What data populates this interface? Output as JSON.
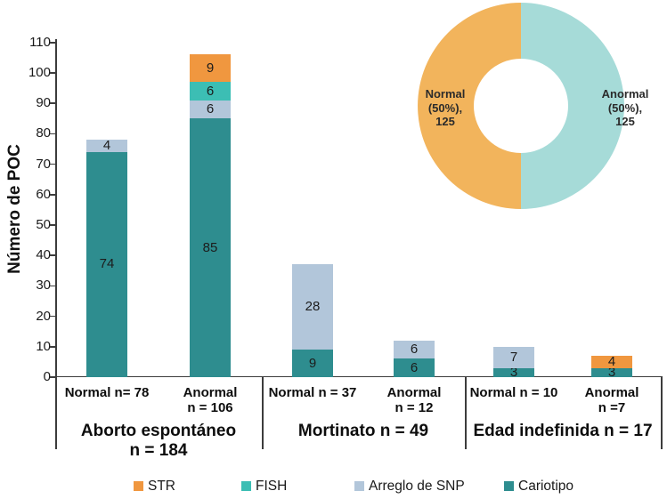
{
  "chart_data": [
    {
      "type": "bar",
      "stacked": true,
      "ylabel": "Número de POC",
      "ylim": [
        0,
        110
      ],
      "ytick_step": 10,
      "grid": false,
      "legend_position": "bottom",
      "legend": [
        "STR",
        "FISH",
        "Arreglo de SNP",
        "Cariotipo"
      ],
      "series_colors": {
        "STR": "#F0973F",
        "FISH": "#3CBEB4",
        "Arreglo de SNP": "#B2C6DA",
        "Cariotipo": "#2E8D8F"
      },
      "groups": [
        {
          "label": "Aborto espontáneo\nn = 184",
          "bars": [
            {
              "label": "Normal n= 78",
              "total": 78,
              "segments": [
                {
                  "series": "Cariotipo",
                  "value": 74
                },
                {
                  "series": "Arreglo de SNP",
                  "value": 4
                }
              ]
            },
            {
              "label": "Anormal\nn = 106",
              "total": 106,
              "segments": [
                {
                  "series": "Cariotipo",
                  "value": 85
                },
                {
                  "series": "Arreglo de SNP",
                  "value": 6
                },
                {
                  "series": "FISH",
                  "value": 6
                },
                {
                  "series": "STR",
                  "value": 9
                }
              ]
            }
          ]
        },
        {
          "label": "Mortinato n = 49",
          "bars": [
            {
              "label": "Normal n = 37",
              "total": 37,
              "segments": [
                {
                  "series": "Cariotipo",
                  "value": 9
                },
                {
                  "series": "Arreglo de SNP",
                  "value": 28
                }
              ]
            },
            {
              "label": "Anormal\nn = 12",
              "total": 12,
              "segments": [
                {
                  "series": "Cariotipo",
                  "value": 6
                },
                {
                  "series": "Arreglo de SNP",
                  "value": 6
                }
              ]
            }
          ]
        },
        {
          "label": "Edad indefinida n = 17",
          "bars": [
            {
              "label": "Normal n = 10",
              "total": 10,
              "segments": [
                {
                  "series": "Cariotipo",
                  "value": 3
                },
                {
                  "series": "Arreglo de SNP",
                  "value": 7
                }
              ]
            },
            {
              "label": "Anormal\nn =7",
              "total": 7,
              "segments": [
                {
                  "series": "Cariotipo",
                  "value": 3
                },
                {
                  "series": "STR",
                  "value": 4
                }
              ]
            }
          ]
        }
      ]
    },
    {
      "type": "pie",
      "donut": true,
      "slices": [
        {
          "label": "Normal",
          "pct": 50,
          "value": 125,
          "color": "#F2B45C",
          "label_lines": [
            "Normal",
            "(50%),",
            "125"
          ]
        },
        {
          "label": "Anormal",
          "pct": 50,
          "value": 125,
          "color": "#A6DBD8",
          "label_lines": [
            "Anormal",
            "(50%),",
            "125"
          ]
        }
      ]
    }
  ]
}
